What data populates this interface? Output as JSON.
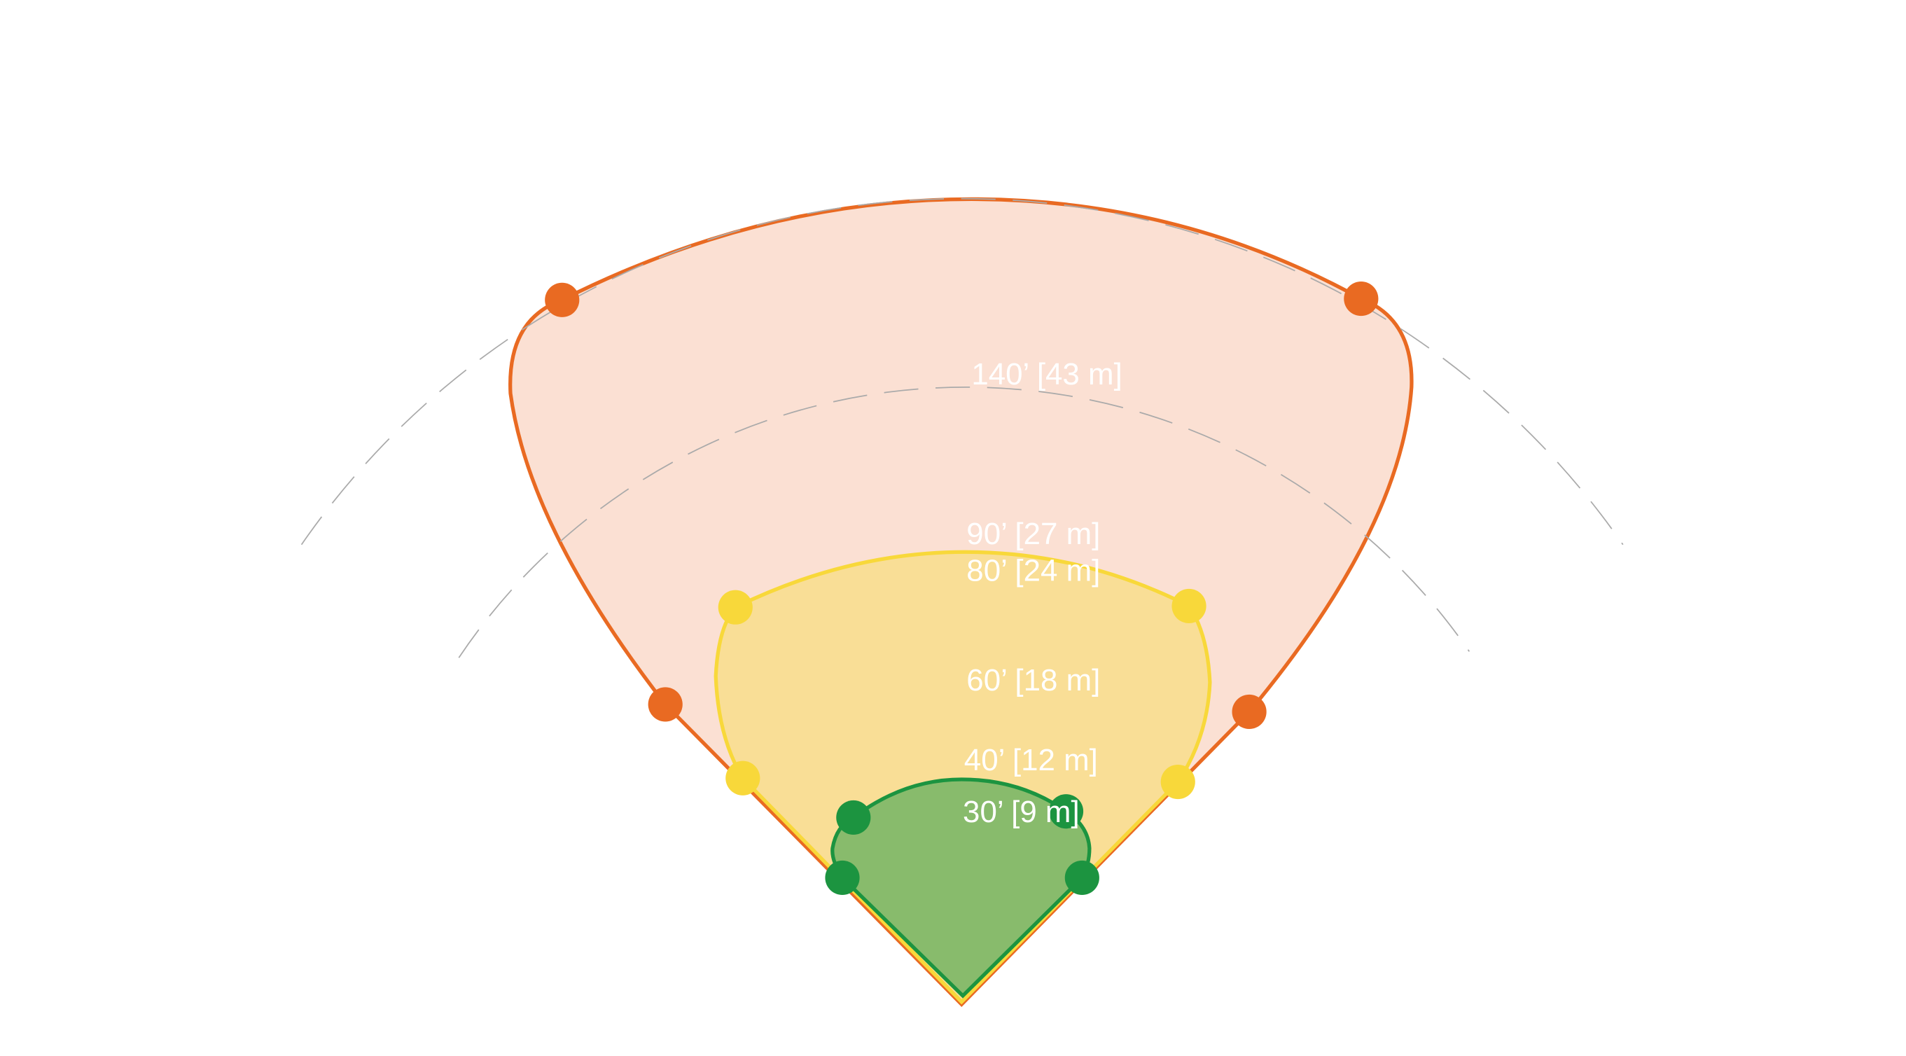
{
  "labels": [
    "140’ [43 m]",
    "90’ [27 m]",
    "80’ [24 m]",
    "60’ [18 m]",
    "40’ [12 m]",
    "30’ [9 m]"
  ]
}
